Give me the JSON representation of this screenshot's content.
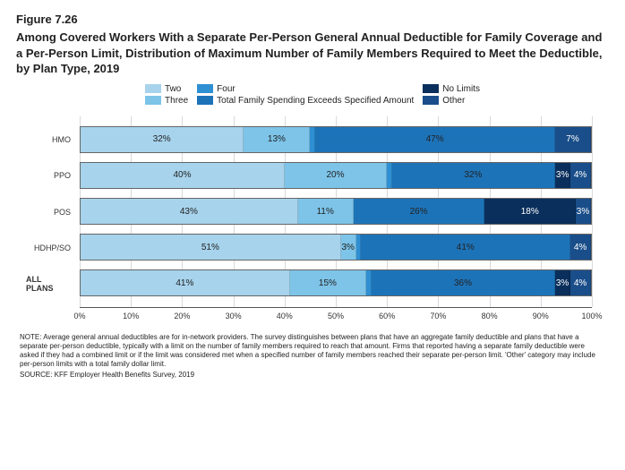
{
  "figure_number": "Figure 7.26",
  "title": "Among Covered Workers With a Separate Per-Person General Annual Deductible for Family Coverage and a Per-Person Limit, Distribution of Maximum Number of Family Members Required to Meet the Deductible, by Plan Type, 2019",
  "legend": {
    "items": [
      {
        "key": "two",
        "label": "Two",
        "color": "#a7d3ec"
      },
      {
        "key": "four",
        "label": "Four",
        "color": "#2f8fd3"
      },
      {
        "key": "nolim",
        "label": "No Limits",
        "color": "#0a2f5c"
      },
      {
        "key": "three",
        "label": "Three",
        "color": "#7dc4e8"
      },
      {
        "key": "totfs",
        "label": "Total Family Spending Exceeds Specified Amount",
        "color": "#1d73b8"
      },
      {
        "key": "other",
        "label": "Other",
        "color": "#1a4e8a"
      }
    ]
  },
  "series_colors": {
    "two": "#a7d3ec",
    "three": "#7dc4e8",
    "four": "#2f8fd3",
    "totfs": "#1d73b8",
    "nolim": "#0a2f5c",
    "other": "#1a4e8a"
  },
  "segment_order": [
    "two",
    "three",
    "four",
    "totfs",
    "nolim",
    "other"
  ],
  "dark_segments": [
    "nolim",
    "other"
  ],
  "categories": [
    {
      "label": "HMO",
      "bold": false,
      "segments": {
        "two": 32,
        "three": 13,
        "four": 1,
        "totfs": 47,
        "nolim": 0,
        "other": 7
      },
      "show_labels": {
        "two": "32%",
        "three": "13%",
        "totfs": "47%",
        "other": "7%"
      }
    },
    {
      "label": "PPO",
      "bold": false,
      "segments": {
        "two": 40,
        "three": 20,
        "four": 1,
        "totfs": 32,
        "nolim": 3,
        "other": 4
      },
      "show_labels": {
        "two": "40%",
        "three": "20%",
        "totfs": "32%",
        "nolim": "3%",
        "other": "4%"
      }
    },
    {
      "label": "POS",
      "bold": false,
      "segments": {
        "two": 43,
        "three": 11,
        "four": 0,
        "totfs": 26,
        "nolim": 18,
        "other": 3
      },
      "show_labels": {
        "two": "43%",
        "three": "11%",
        "totfs": "26%",
        "nolim": "18%",
        "other": "3%"
      }
    },
    {
      "label": "HDHP/SO",
      "bold": false,
      "segments": {
        "two": 51,
        "three": 3,
        "four": 1,
        "totfs": 41,
        "nolim": 0,
        "other": 4
      },
      "show_labels": {
        "two": "51%",
        "three": "3%",
        "totfs": "41%",
        "other": "4%"
      }
    },
    {
      "label": "ALL PLANS",
      "bold": true,
      "segments": {
        "two": 41,
        "three": 15,
        "four": 1,
        "totfs": 36,
        "nolim": 3,
        "other": 4
      },
      "show_labels": {
        "two": "41%",
        "three": "15%",
        "totfs": "36%",
        "nolim": "3%",
        "other": "4%"
      }
    }
  ],
  "xaxis": {
    "ticks": [
      0,
      10,
      20,
      30,
      40,
      50,
      60,
      70,
      80,
      90,
      100
    ],
    "labels": [
      "0%",
      "10%",
      "20%",
      "30%",
      "40%",
      "50%",
      "60%",
      "70%",
      "80%",
      "90%",
      "100%"
    ],
    "max": 100
  },
  "note": "NOTE: Average general annual deductibles are for in-network providers. The survey distinguishes between plans that have an aggregate family deductible and plans that have a separate per-person deductible, typically with a limit on the number of family members required to reach that amount. Firms that reported having a separate family deductible were asked if they had a combined limit or if the limit was considered met when a specified number of family members reached their separate per-person limit. 'Other' category may include per-person limits with a total family dollar limit.",
  "source": "SOURCE: KFF Employer Health Benefits Survey, 2019"
}
